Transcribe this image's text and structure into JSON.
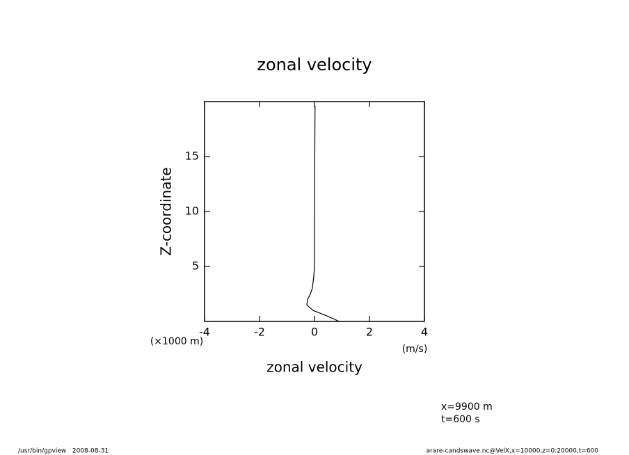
{
  "chart_data": {
    "type": "line",
    "title": "zonal velocity",
    "x_label": "zonal velocity",
    "x_unit": "(m/s)",
    "y_label": "Z-coordinate",
    "y_unit": "(×1000 m)",
    "x": [
      0.9,
      0.45,
      -0.05,
      -0.28,
      -0.25,
      -0.15,
      -0.08,
      -0.03,
      0,
      0,
      0,
      0.01,
      0.02
    ],
    "y": [
      0,
      0.5,
      1,
      1.5,
      2,
      2.5,
      3,
      4,
      5,
      7.5,
      10,
      15,
      19.6
    ],
    "color": "#000000",
    "xlim": [
      -4,
      4
    ],
    "xticks": [
      -4,
      -2,
      0,
      2,
      4
    ],
    "ylim": [
      0,
      20
    ],
    "yticks": [
      5,
      10,
      15
    ],
    "annotations": [
      "x=9900 m",
      "t=600 s"
    ],
    "footer_left": "/usr/bin/gpview   2008-08-31",
    "footer_right": "arare-candswave.nc@VelX,x=10000,z=0:20000,t=600"
  }
}
